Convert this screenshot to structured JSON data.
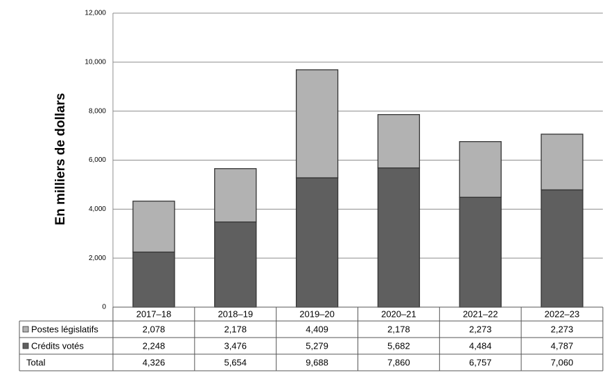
{
  "chart_data": {
    "type": "stacked-bar",
    "y_label": "En milliers de dollars",
    "categories": [
      "2017–18",
      "2018–19",
      "2019–20",
      "2020–21",
      "2021–22",
      "2022–23"
    ],
    "series": [
      {
        "name": "Postes législatifs",
        "color": "#b2b2b2",
        "values": [
          2078,
          2178,
          4409,
          2178,
          2273,
          2273
        ],
        "value_labels": [
          "2,078",
          "2,178",
          "4,409",
          "2,178",
          "2,273",
          "2,273"
        ]
      },
      {
        "name": "Crédits votés",
        "color": "#5f5f5f",
        "values": [
          2248,
          3476,
          5279,
          5682,
          4484,
          4787
        ],
        "value_labels": [
          "2,248",
          "3,476",
          "5,279",
          "5,682",
          "4,484",
          "4,787"
        ]
      }
    ],
    "total": {
      "name": "Total",
      "values": [
        4326,
        5654,
        9688,
        7860,
        6757,
        7060
      ],
      "value_labels": [
        "4,326",
        "5,654",
        "9,688",
        "7,860",
        "6,757",
        "7,060"
      ]
    },
    "ylim": [
      0,
      12000
    ],
    "yticks": [
      0,
      {
        "value": 2000,
        "label": "2,000"
      },
      {
        "value": 4000,
        "label": "4,000"
      },
      {
        "value": 6000,
        "label": "6,000"
      },
      {
        "value": 8000,
        "label": "8,000"
      },
      {
        "value": 10000,
        "label": "10,000"
      },
      {
        "value": 12000,
        "label": "12,000"
      }
    ],
    "grid": true
  }
}
